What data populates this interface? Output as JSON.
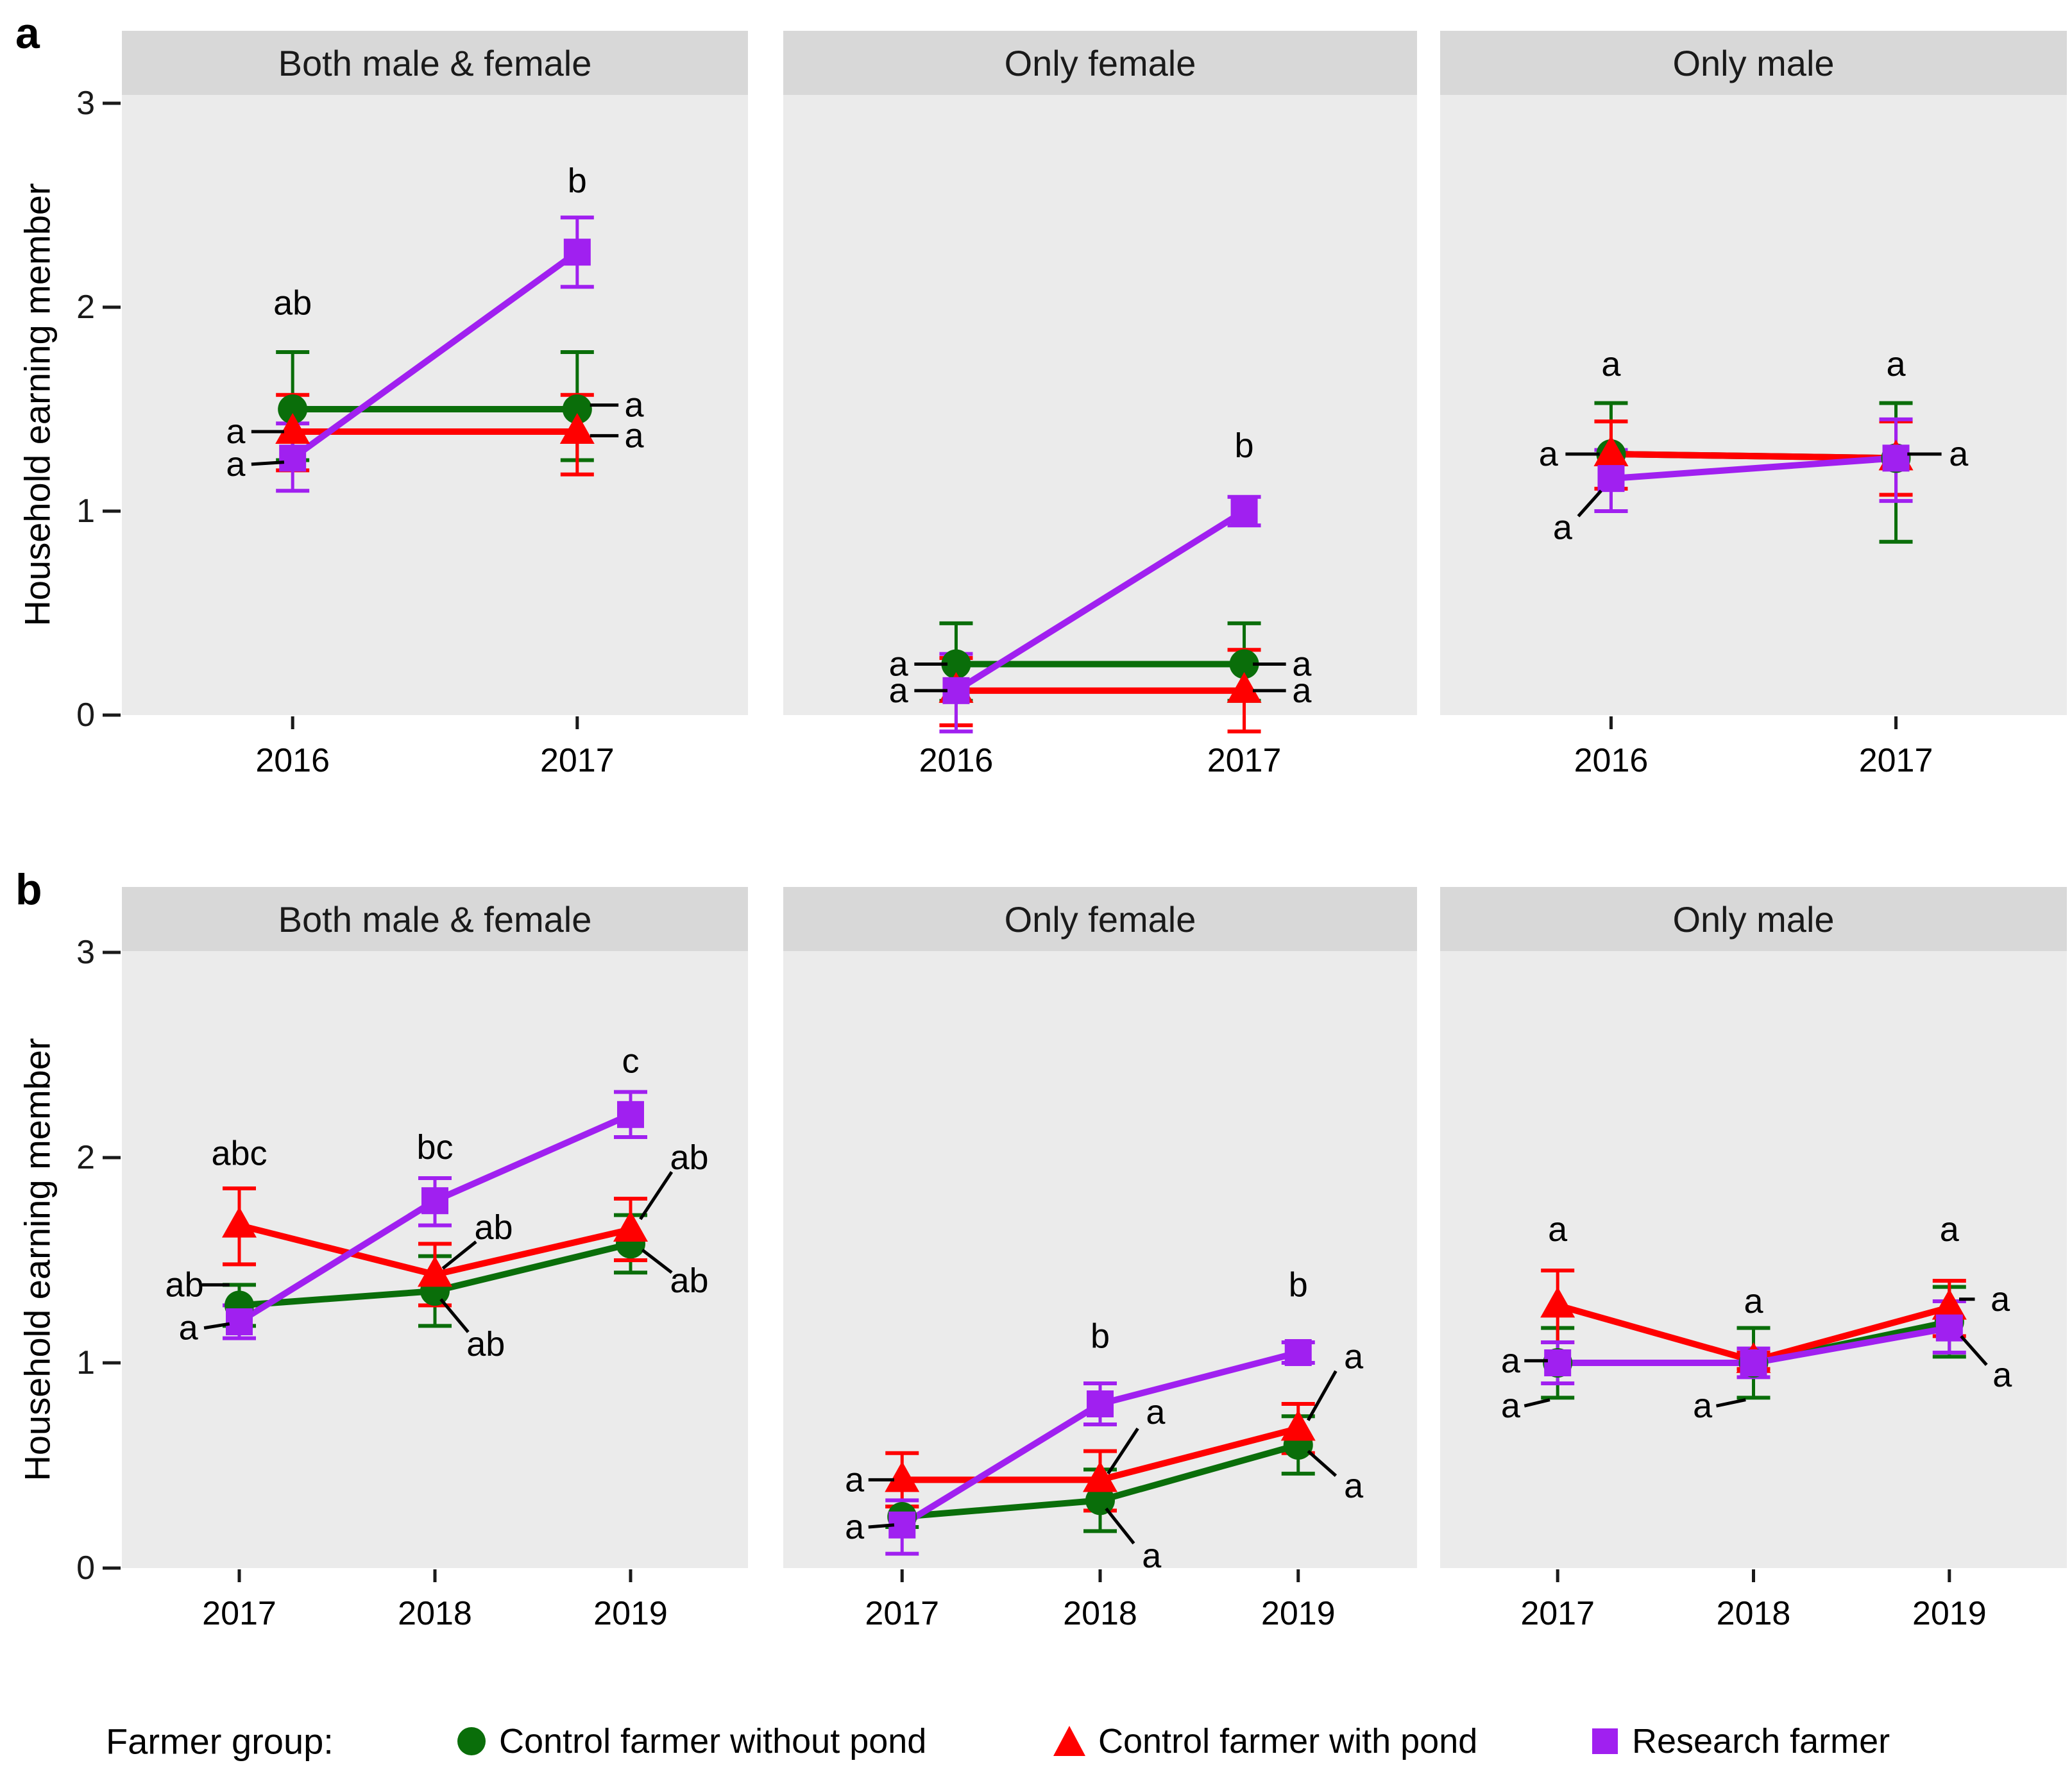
{
  "figure": {
    "panel_letters": [
      "a",
      "b"
    ]
  },
  "legend": {
    "title": "Farmer group:",
    "items": [
      {
        "label": "Control farmer without pond",
        "marker": "circle",
        "color": "#0a6e0a"
      },
      {
        "label": "Control farmer with pond",
        "marker": "triangle",
        "color": "#FF0000"
      },
      {
        "label": "Research farmer",
        "marker": "square",
        "color": "#A020F0"
      }
    ]
  },
  "chart_data": {
    "type": "line",
    "title": "",
    "xlabel": "",
    "ylabel": "Household earning member",
    "ylim": [
      0,
      3
    ],
    "yticks": [
      0,
      1,
      2,
      3
    ],
    "grid": false,
    "legend_position": "bottom",
    "panel_bg": "#EBEBEB",
    "strip_bg": "#D8D8D8",
    "series_meta": [
      {
        "name": "Control farmer without pond",
        "marker": "circle",
        "color": "#0a6e0a"
      },
      {
        "name": "Control farmer with pond",
        "marker": "triangle",
        "color": "#FF0000"
      },
      {
        "name": "Research farmer",
        "marker": "square",
        "color": "#A020F0"
      }
    ],
    "panels": [
      {
        "letter": "a",
        "categories": [
          "2016",
          "2017"
        ],
        "facets": [
          {
            "title": "Both male & female",
            "series": [
              {
                "name": "Control farmer without pond",
                "values": [
                  1.5,
                  1.5
                ],
                "lower": [
                  1.25,
                  1.25
                ],
                "upper": [
                  1.78,
                  1.78
                ]
              },
              {
                "name": "Control farmer with pond",
                "values": [
                  1.39,
                  1.39
                ],
                "lower": [
                  1.2,
                  1.18
                ],
                "upper": [
                  1.57,
                  1.57
                ]
              },
              {
                "name": "Research farmer",
                "values": [
                  1.26,
                  2.27
                ],
                "lower": [
                  1.1,
                  2.1
                ],
                "upper": [
                  1.43,
                  2.44
                ]
              }
            ],
            "annotations": [
              {
                "text": "ab",
                "x": 0,
                "y": 2.02
              },
              {
                "text": "a",
                "x": -0.2,
                "y": 1.39,
                "leader": [
                  -0.145,
                  1.39,
                  -0.03,
                  1.39
                ]
              },
              {
                "text": "a",
                "x": -0.2,
                "y": 1.23,
                "leader": [
                  -0.145,
                  1.23,
                  -0.03,
                  1.24
                ]
              },
              {
                "text": "b",
                "x": 1,
                "y": 2.62
              },
              {
                "text": "a",
                "x": 1.2,
                "y": 1.52,
                "leader": [
                  1.045,
                  1.52,
                  1.145,
                  1.52
                ]
              },
              {
                "text": "a",
                "x": 1.2,
                "y": 1.37,
                "leader": [
                  1.045,
                  1.37,
                  1.145,
                  1.37
                ]
              }
            ]
          },
          {
            "title": "Only female",
            "series": [
              {
                "name": "Control farmer without pond",
                "values": [
                  0.25,
                  0.25
                ],
                "lower": [
                  0.07,
                  0.07
                ],
                "upper": [
                  0.45,
                  0.45
                ]
              },
              {
                "name": "Control farmer with pond",
                "values": [
                  0.12,
                  0.12
                ],
                "lower": [
                  -0.05,
                  -0.08
                ],
                "upper": [
                  0.28,
                  0.32
                ]
              },
              {
                "name": "Research farmer",
                "values": [
                  0.12,
                  1.0
                ],
                "lower": [
                  -0.08,
                  0.93
                ],
                "upper": [
                  0.3,
                  1.07
                ]
              }
            ],
            "annotations": [
              {
                "text": "a",
                "x": -0.2,
                "y": 0.25,
                "leader": [
                  -0.145,
                  0.25,
                  -0.03,
                  0.25
                ]
              },
              {
                "text": "a",
                "x": -0.2,
                "y": 0.12,
                "leader": [
                  -0.145,
                  0.12,
                  -0.03,
                  0.12
                ]
              },
              {
                "text": "b",
                "x": 1,
                "y": 1.32
              },
              {
                "text": "a",
                "x": 1.2,
                "y": 0.25,
                "leader": [
                  1.03,
                  0.25,
                  1.145,
                  0.25
                ]
              },
              {
                "text": "a",
                "x": 1.2,
                "y": 0.12,
                "leader": [
                  1.03,
                  0.12,
                  1.145,
                  0.12
                ]
              }
            ]
          },
          {
            "title": "Only male",
            "series": [
              {
                "name": "Control farmer without pond",
                "values": [
                  1.28,
                  1.26
                ],
                "lower": [
                  1.0,
                  0.85
                ],
                "upper": [
                  1.53,
                  1.53
                ]
              },
              {
                "name": "Control farmer with pond",
                "values": [
                  1.28,
                  1.26
                ],
                "lower": [
                  1.11,
                  1.08
                ],
                "upper": [
                  1.44,
                  1.44
                ]
              },
              {
                "name": "Research farmer",
                "values": [
                  1.16,
                  1.26
                ],
                "lower": [
                  1.0,
                  1.05
                ],
                "upper": [
                  1.3,
                  1.45
                ]
              }
            ],
            "annotations": [
              {
                "text": "a",
                "x": 0,
                "y": 1.72
              },
              {
                "text": "a",
                "x": -0.22,
                "y": 1.28,
                "leader": [
                  -0.16,
                  1.28,
                  -0.04,
                  1.28
                ]
              },
              {
                "text": "a",
                "x": -0.17,
                "y": 0.92,
                "leader": [
                  -0.115,
                  0.975,
                  -0.035,
                  1.1
                ]
              },
              {
                "text": "a",
                "x": 1,
                "y": 1.72
              },
              {
                "text": "a",
                "x": 1.22,
                "y": 1.28,
                "leader": [
                  1.04,
                  1.28,
                  1.16,
                  1.28
                ]
              }
            ]
          }
        ]
      },
      {
        "letter": "b",
        "categories": [
          "2017",
          "2018",
          "2019"
        ],
        "facets": [
          {
            "title": "Both male & female",
            "series": [
              {
                "name": "Control farmer without pond",
                "values": [
                  1.28,
                  1.35,
                  1.58
                ],
                "lower": [
                  1.18,
                  1.18,
                  1.44
                ],
                "upper": [
                  1.38,
                  1.52,
                  1.72
                ]
              },
              {
                "name": "Control farmer with pond",
                "values": [
                  1.67,
                  1.43,
                  1.65
                ],
                "lower": [
                  1.48,
                  1.28,
                  1.5
                ],
                "upper": [
                  1.85,
                  1.58,
                  1.8
                ]
              },
              {
                "name": "Research farmer",
                "values": [
                  1.2,
                  1.79,
                  2.21
                ],
                "lower": [
                  1.12,
                  1.67,
                  2.1
                ],
                "upper": [
                  1.28,
                  1.9,
                  2.32
                ]
              }
            ],
            "annotations": [
              {
                "text": "abc",
                "x": 0,
                "y": 2.02
              },
              {
                "text": "ab",
                "x": -0.28,
                "y": 1.38,
                "leader": [
                  -0.19,
                  1.38,
                  -0.05,
                  1.38
                ]
              },
              {
                "text": "a",
                "x": -0.26,
                "y": 1.17,
                "leader": [
                  -0.18,
                  1.17,
                  -0.05,
                  1.19
                ]
              },
              {
                "text": "bc",
                "x": 1,
                "y": 2.05
              },
              {
                "text": "ab",
                "x": 1.3,
                "y": 1.66,
                "leader": [
                  1.21,
                  1.59,
                  1.04,
                  1.46
                ]
              },
              {
                "text": "ab",
                "x": 1.26,
                "y": 1.09,
                "leader": [
                  1.17,
                  1.15,
                  1.03,
                  1.31
                ]
              },
              {
                "text": "c",
                "x": 2,
                "y": 2.47
              },
              {
                "text": "ab",
                "x": 2.3,
                "y": 2.0,
                "leader": [
                  2.21,
                  1.93,
                  2.05,
                  1.7
                ]
              },
              {
                "text": "ab",
                "x": 2.3,
                "y": 1.4,
                "leader": [
                  2.21,
                  1.44,
                  2.06,
                  1.55
                ]
              }
            ]
          },
          {
            "title": "Only female",
            "series": [
              {
                "name": "Control farmer without pond",
                "values": [
                  0.25,
                  0.33,
                  0.6
                ],
                "lower": [
                  0.2,
                  0.18,
                  0.46
                ],
                "upper": [
                  0.3,
                  0.48,
                  0.74
                ]
              },
              {
                "name": "Control farmer with pond",
                "values": [
                  0.43,
                  0.43,
                  0.68
                ],
                "lower": [
                  0.3,
                  0.28,
                  0.56
                ],
                "upper": [
                  0.56,
                  0.57,
                  0.8
                ]
              },
              {
                "name": "Research farmer",
                "values": [
                  0.21,
                  0.8,
                  1.05
                ],
                "lower": [
                  0.07,
                  0.7,
                  1.0
                ],
                "upper": [
                  0.33,
                  0.9,
                  1.1
                ]
              }
            ],
            "annotations": [
              {
                "text": "a",
                "x": -0.24,
                "y": 0.43,
                "leader": [
                  -0.17,
                  0.43,
                  -0.04,
                  0.43
                ]
              },
              {
                "text": "a",
                "x": -0.24,
                "y": 0.2,
                "leader": [
                  -0.17,
                  0.2,
                  -0.04,
                  0.21
                ]
              },
              {
                "text": "b",
                "x": 1,
                "y": 1.13
              },
              {
                "text": "a",
                "x": 1.28,
                "y": 0.76,
                "leader": [
                  1.19,
                  0.68,
                  1.04,
                  0.46
                ]
              },
              {
                "text": "a",
                "x": 1.26,
                "y": 0.06,
                "leader": [
                  1.17,
                  0.12,
                  1.03,
                  0.29
                ]
              },
              {
                "text": "b",
                "x": 2,
                "y": 1.38
              },
              {
                "text": "a",
                "x": 2.28,
                "y": 1.03,
                "leader": [
                  2.19,
                  0.96,
                  2.05,
                  0.72
                ]
              },
              {
                "text": "a",
                "x": 2.28,
                "y": 0.4,
                "leader": [
                  2.19,
                  0.45,
                  2.05,
                  0.57
                ]
              }
            ]
          },
          {
            "title": "Only male",
            "series": [
              {
                "name": "Control farmer without pond",
                "values": [
                  1.0,
                  1.0,
                  1.2
                ],
                "lower": [
                  0.83,
                  0.83,
                  1.03
                ],
                "upper": [
                  1.17,
                  1.17,
                  1.37
                ]
              },
              {
                "name": "Control farmer with pond",
                "values": [
                  1.28,
                  1.01,
                  1.27
                ],
                "lower": [
                  1.1,
                  0.97,
                  1.13
                ],
                "upper": [
                  1.45,
                  1.05,
                  1.4
                ]
              },
              {
                "name": "Research farmer",
                "values": [
                  1.0,
                  1.0,
                  1.17
                ],
                "lower": [
                  0.9,
                  0.93,
                  1.05
                ],
                "upper": [
                  1.1,
                  1.07,
                  1.3
                ]
              }
            ],
            "annotations": [
              {
                "text": "a",
                "x": 0,
                "y": 1.65
              },
              {
                "text": "a",
                "x": -0.24,
                "y": 1.01,
                "leader": [
                  -0.17,
                  1.01,
                  -0.05,
                  1.01
                ]
              },
              {
                "text": "a",
                "x": -0.24,
                "y": 0.79,
                "leader": [
                  -0.17,
                  0.79,
                  -0.04,
                  0.82
                ]
              },
              {
                "text": "a",
                "x": 1,
                "y": 1.3
              },
              {
                "text": "a",
                "x": 0.74,
                "y": 0.79,
                "leader": [
                  0.81,
                  0.79,
                  0.96,
                  0.82
                ]
              },
              {
                "text": "a",
                "x": 2,
                "y": 1.65
              },
              {
                "text": "a",
                "x": 2.26,
                "y": 1.31,
                "leader": [
                  2.13,
                  1.31,
                  2.05,
                  1.31
                ]
              },
              {
                "text": "a",
                "x": 2.27,
                "y": 0.94,
                "leader": [
                  2.19,
                  0.99,
                  2.06,
                  1.13
                ]
              }
            ]
          }
        ]
      }
    ]
  }
}
